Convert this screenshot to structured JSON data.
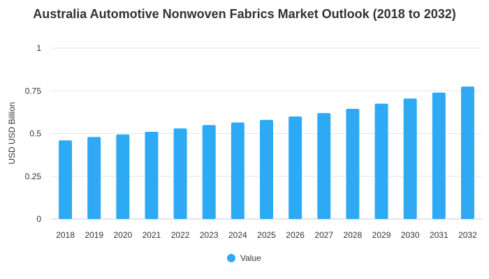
{
  "chart_data": {
    "type": "bar",
    "title": "Australia Automotive Nonwoven Fabrics Market Outlook (2018 to 2032)",
    "xlabel": "",
    "ylabel": "USD USD Billion",
    "ylim": [
      0,
      1
    ],
    "yticks": [
      "0",
      "0.25",
      "0.5",
      "0.75",
      "1"
    ],
    "grid": true,
    "legend_position": "bottom",
    "categories": [
      "2018",
      "2019",
      "2020",
      "2021",
      "2022",
      "2023",
      "2024",
      "2025",
      "2026",
      "2027",
      "2028",
      "2029",
      "2030",
      "2031",
      "2032"
    ],
    "series": [
      {
        "name": "Value",
        "color": "#2eaaf5",
        "values": [
          0.46,
          0.48,
          0.495,
          0.51,
          0.53,
          0.55,
          0.565,
          0.58,
          0.6,
          0.62,
          0.645,
          0.675,
          0.705,
          0.74,
          0.775
        ]
      }
    ]
  }
}
